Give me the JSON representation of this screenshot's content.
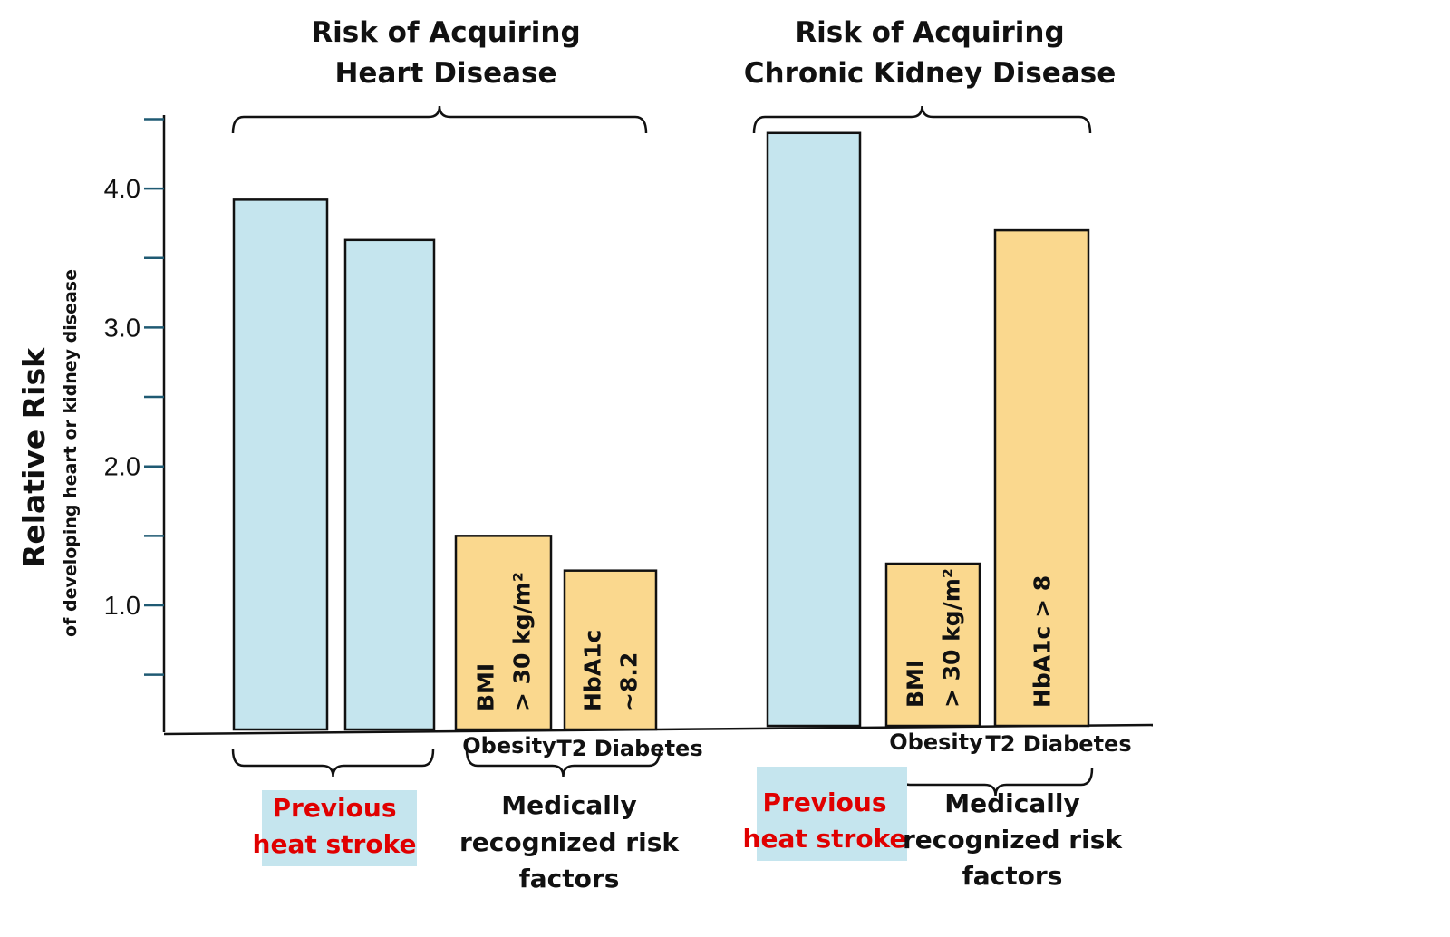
{
  "chart_data": {
    "type": "bar",
    "ylabel": "Relative Risk",
    "ylabel_sub": "of developing heart or kidney disease",
    "ylim": [
      0,
      4.5
    ],
    "y_ticks": [
      0.5,
      1.0,
      1.5,
      2.0,
      2.5,
      3.0,
      3.5,
      4.0,
      4.5
    ],
    "y_tick_labels": [
      {
        "value": 1.0,
        "label": "1.0"
      },
      {
        "value": 2.0,
        "label": "2.0"
      },
      {
        "value": 3.0,
        "label": "3.0"
      },
      {
        "value": 4.0,
        "label": "4.0"
      }
    ],
    "grid": false,
    "colors": {
      "heat_stroke": "#c5e5ee",
      "risk_factor": "#fad88e",
      "highlight_bg": "#c5e5ee",
      "red_text": "#e00000"
    },
    "groups": [
      {
        "title_lines": [
          "Risk of Acquiring",
          "Heart Disease"
        ],
        "bars": [
          {
            "value": 3.92,
            "kind": "heat_stroke",
            "label_lines": [],
            "category": ""
          },
          {
            "value": 3.63,
            "kind": "heat_stroke",
            "label_lines": [],
            "category": ""
          },
          {
            "value": 1.5,
            "kind": "risk_factor",
            "label_lines": [
              "BMI",
              "> 30 kg/m²"
            ],
            "category": "Obesity"
          },
          {
            "value": 1.25,
            "kind": "risk_factor",
            "label_lines": [
              "HbA1c",
              "~8.2"
            ],
            "category": "T2 Diabetes"
          }
        ],
        "heat_label_lines": [
          "Previous",
          "heat stroke"
        ],
        "risk_label_lines": [
          "Medically",
          "recognized risk",
          "factors"
        ]
      },
      {
        "title_lines": [
          "Risk of Acquiring",
          "Chronic Kidney Disease"
        ],
        "bars": [
          {
            "value": 4.4,
            "kind": "heat_stroke",
            "label_lines": [],
            "category": ""
          },
          {
            "value": 1.3,
            "kind": "risk_factor",
            "label_lines": [
              "BMI",
              "> 30 kg/m²"
            ],
            "category": "Obesity"
          },
          {
            "value": 3.7,
            "kind": "risk_factor",
            "label_lines": [
              "HbA1c > 8"
            ],
            "category": "T2 Diabetes"
          }
        ],
        "heat_label_lines": [
          "Previous",
          "heat stroke"
        ],
        "risk_label_lines": [
          "Medically",
          "recognized risk",
          "factors"
        ]
      }
    ]
  }
}
